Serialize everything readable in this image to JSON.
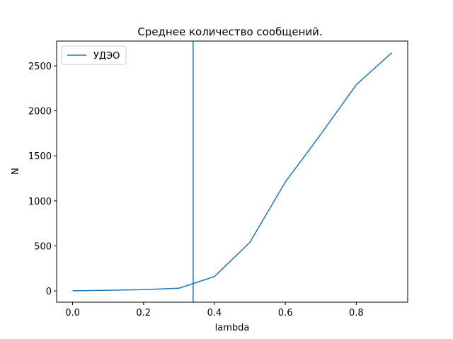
{
  "chart_data": {
    "type": "line",
    "title": "Среднее количество сообщений.",
    "xlabel": "lambda",
    "ylabel": "N",
    "xlim": [
      -0.045,
      0.945
    ],
    "ylim": [
      -125,
      2775
    ],
    "xticks": [
      0.0,
      0.2,
      0.4,
      0.6,
      0.8
    ],
    "xtick_labels": [
      "0.0",
      "0.2",
      "0.4",
      "0.6",
      "0.8"
    ],
    "yticks": [
      0,
      500,
      1000,
      1500,
      2000,
      2500
    ],
    "ytick_labels": [
      "0",
      "500",
      "1000",
      "1500",
      "2000",
      "2500"
    ],
    "grid": false,
    "legend_position": "upper-left",
    "series": [
      {
        "name": "УДЭО",
        "color": "#1f77b4",
        "x": [
          0.0,
          0.1,
          0.2,
          0.3,
          0.4,
          0.5,
          0.6,
          0.7,
          0.8,
          0.9
        ],
        "y": [
          2,
          8,
          15,
          30,
          160,
          540,
          1210,
          1740,
          2290,
          2645
        ]
      }
    ],
    "vertical_lines": [
      {
        "x": 0.34,
        "color": "#1f77b4"
      }
    ]
  }
}
